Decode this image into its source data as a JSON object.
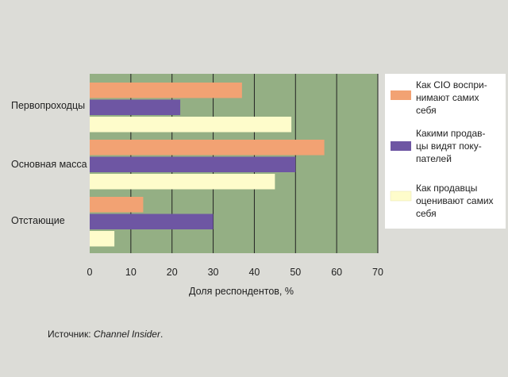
{
  "chart_data": {
    "type": "bar",
    "orientation": "horizontal",
    "categories": [
      "Первопроходцы",
      "Основная масса",
      "Отстающие"
    ],
    "series": [
      {
        "name": "Как CIO воспри-\nнимают самих\nсебя",
        "values": [
          37,
          57,
          13
        ]
      },
      {
        "name": "Какими продав-\nцы видят поку-\nпателей",
        "values": [
          22,
          50,
          30
        ]
      },
      {
        "name": "Как продавцы\nоценивают самих\nсебя",
        "values": [
          49,
          45,
          6
        ]
      }
    ],
    "x_ticks": [
      0,
      10,
      20,
      30,
      40,
      50,
      60,
      70
    ],
    "xlim": [
      0,
      70
    ],
    "xlabel": "Доля респондентов, %",
    "ylabel": "",
    "title": "",
    "grid": true,
    "legend_position": "right"
  },
  "colors": {
    "series": [
      "#f2a273",
      "#6e56a3",
      "#fefccb"
    ],
    "plot_background": "#94af84",
    "page_background": "#dcdcd7",
    "legend_background": "#ffffff",
    "gridline": "#222222"
  },
  "source": {
    "prefix": "Источник: ",
    "name": "Channel Insider",
    "suffix": "."
  }
}
